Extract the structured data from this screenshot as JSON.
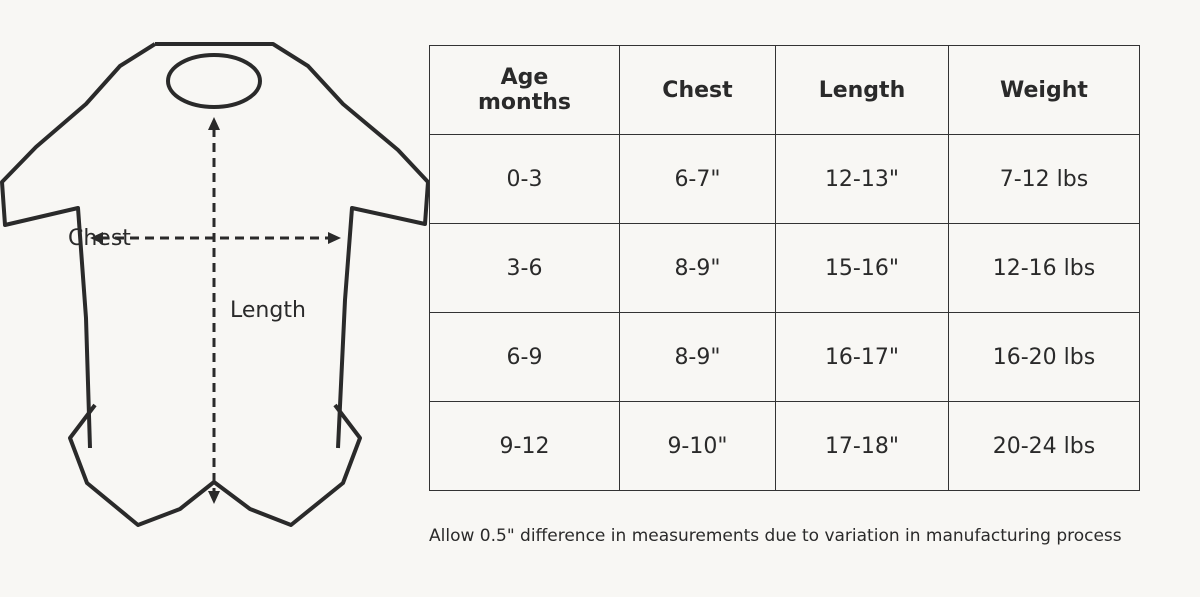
{
  "diagram": {
    "labels": {
      "chest": "Chest",
      "length": "Length"
    }
  },
  "table": {
    "header": [
      "Age months",
      "Chest",
      "Length",
      "Weight"
    ],
    "rows": [
      [
        "0-3",
        "6-7\"",
        "12-13\"",
        "7-12 lbs"
      ],
      [
        "3-6",
        "8-9\"",
        "15-16\"",
        "12-16 lbs"
      ],
      [
        "6-9",
        "8-9\"",
        "16-17\"",
        "16-20 lbs"
      ],
      [
        "9-12",
        "9-10\"",
        "17-18\"",
        "20-24 lbs"
      ]
    ]
  },
  "note": "Allow 0.5\" difference in measurements due to variation in manufacturing process"
}
